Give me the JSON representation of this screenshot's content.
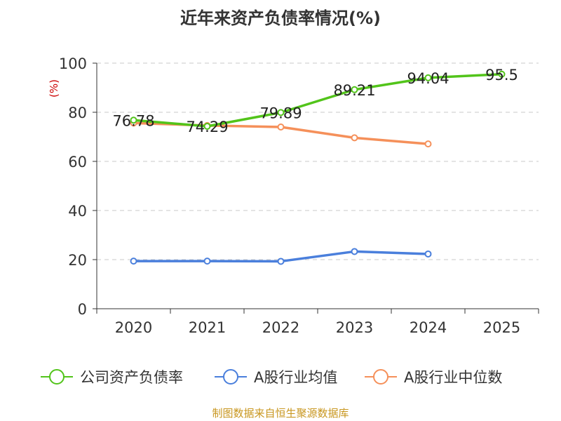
{
  "chart_data": {
    "type": "line",
    "title": "近年来资产负债率情况(%)",
    "ylabel": "(%)",
    "xlabel": "",
    "categories": [
      "2020",
      "2021",
      "2022",
      "2023",
      "2024",
      "2025"
    ],
    "ylim": [
      0,
      100
    ],
    "yticks": [
      0,
      20,
      40,
      60,
      80,
      100
    ],
    "grid": true,
    "legend_position": "bottom",
    "series": [
      {
        "name": "公司资产负债率",
        "color": "#52c41a",
        "values": [
          76.78,
          74.29,
          79.89,
          89.21,
          94.04,
          95.5
        ],
        "labels": [
          "76.78",
          "74.29",
          "79.89",
          "89.21",
          "94.04",
          "95.5"
        ]
      },
      {
        "name": "A股行业均值",
        "color": "#4a7fdc",
        "values": [
          19.4,
          19.4,
          19.3,
          23.3,
          22.3,
          null
        ]
      },
      {
        "name": "A股行业中位数",
        "color": "#f5905a",
        "values": [
          75.6,
          74.6,
          74.0,
          69.6,
          67.1,
          null
        ]
      }
    ]
  },
  "footer": {
    "source": "制图数据来自恒生聚源数据库"
  }
}
